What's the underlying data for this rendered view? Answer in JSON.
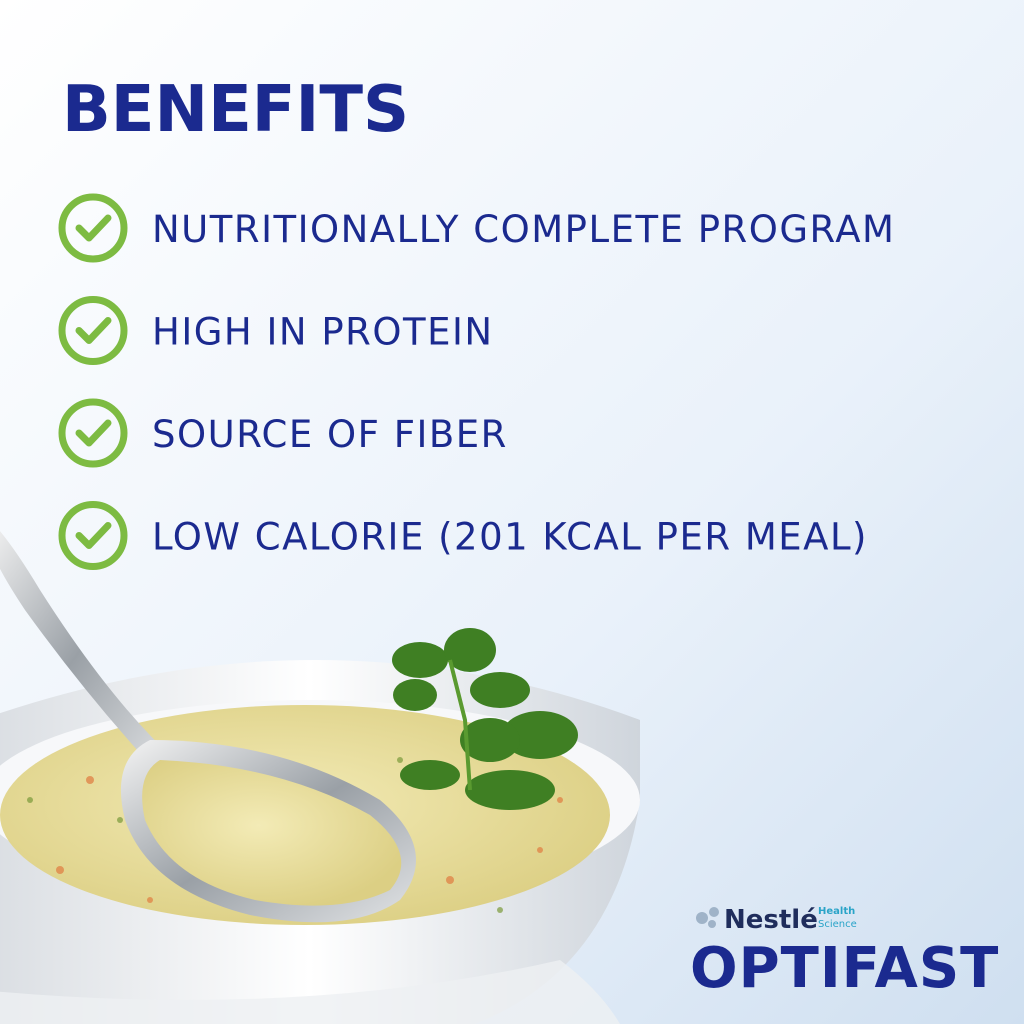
{
  "title": "BENEFITS",
  "benefits": [
    "NUTRITIONALLY COMPLETE PROGRAM",
    "HIGH IN PROTEIN",
    "SOURCE OF FIBER",
    "LOW CALORIE (201 KCAL PER MEAL)"
  ],
  "brand": {
    "company": "Nestlé",
    "division_line1": "Health",
    "division_line2": "Science",
    "product": "OPTIFAST"
  }
}
